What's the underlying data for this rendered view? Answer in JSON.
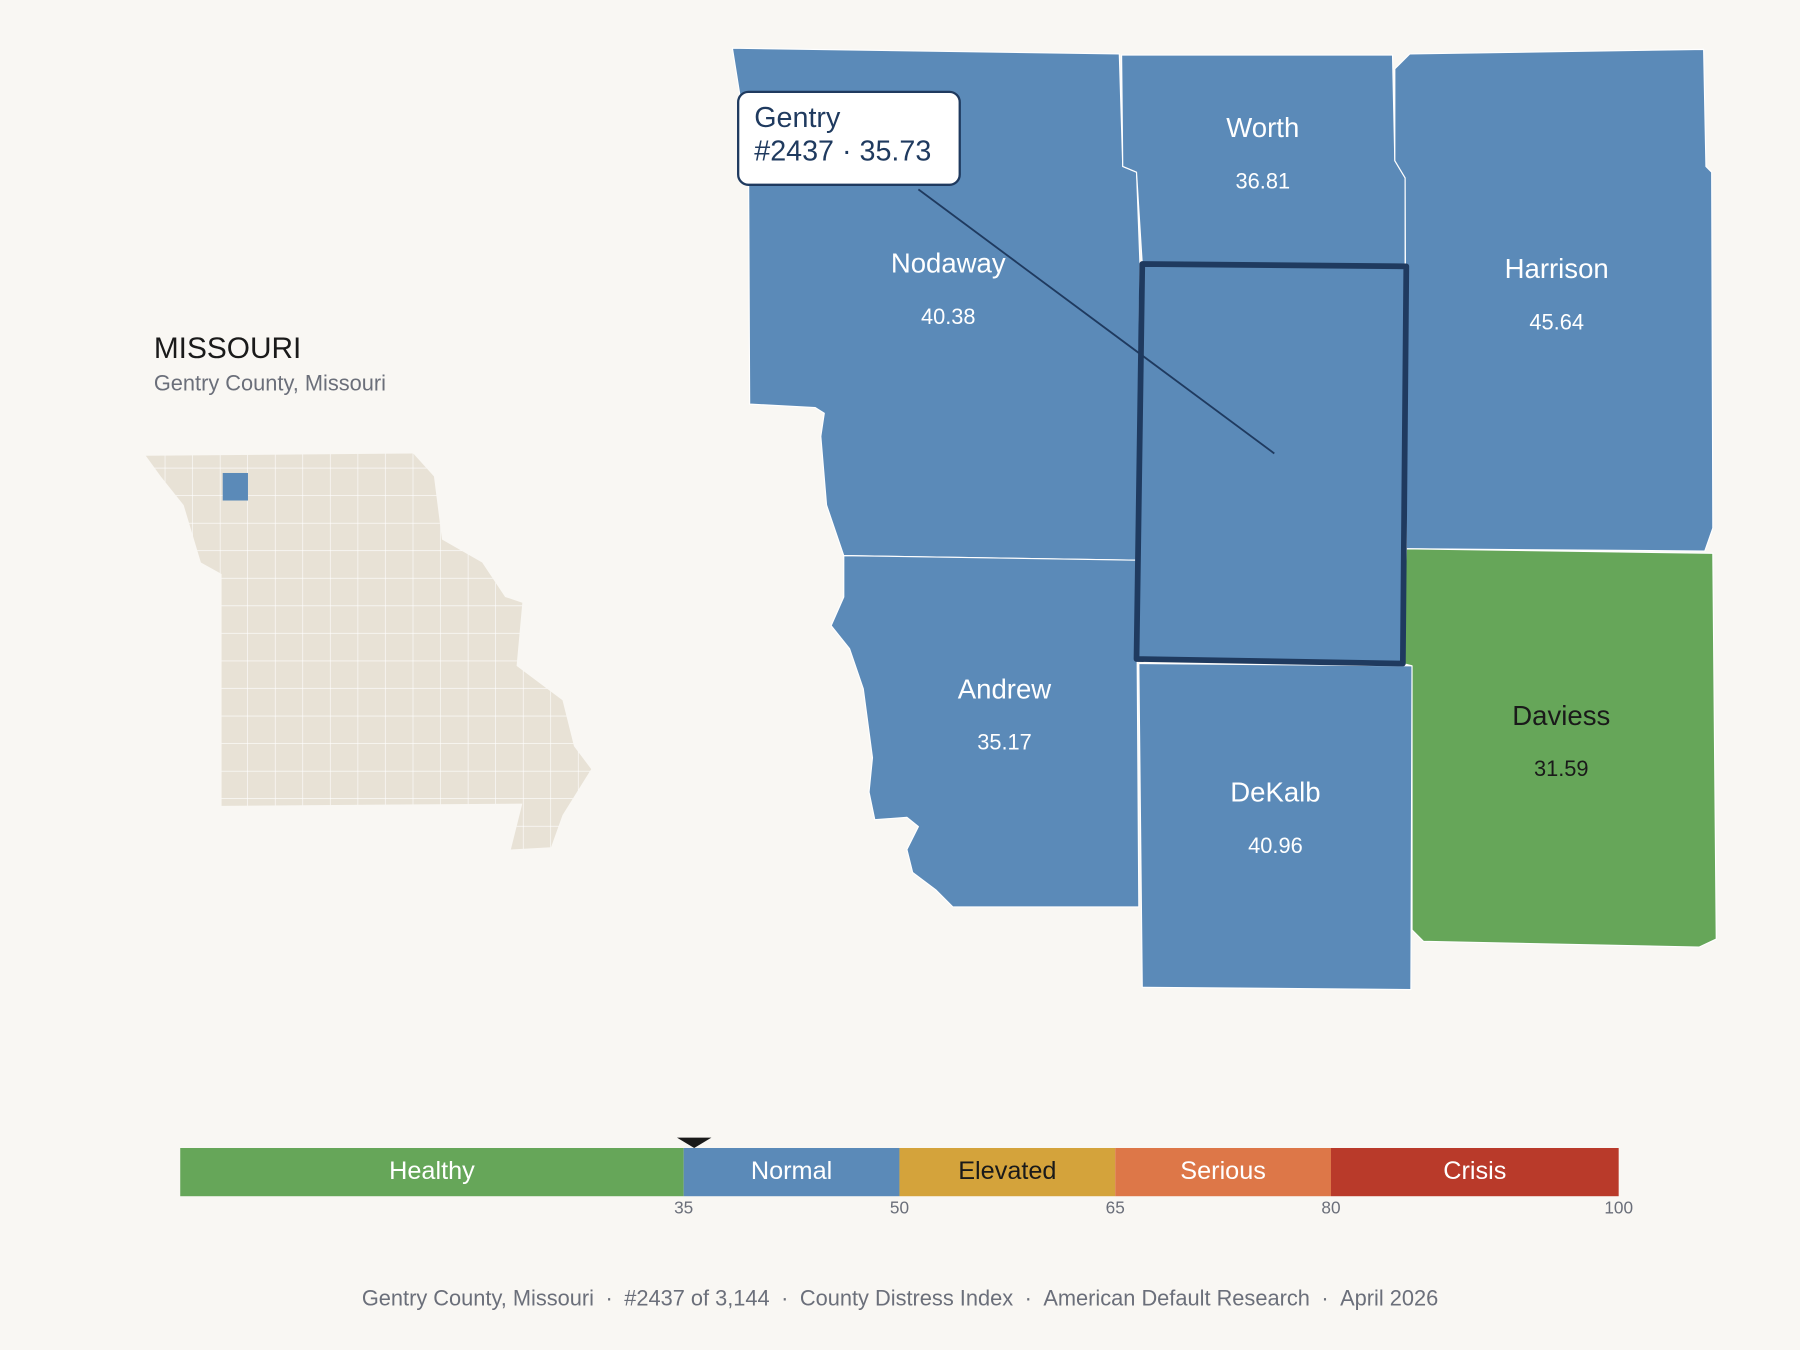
{
  "header": {
    "title": "MISSOURI",
    "subtitle": "Gentry County, Missouri"
  },
  "tooltip": {
    "name": "Gentry",
    "detail": "#2437 · 35.73"
  },
  "counties": [
    {
      "name": "Nodaway",
      "value": 40.38
    },
    {
      "name": "Worth",
      "value": 36.81
    },
    {
      "name": "Harrison",
      "value": 45.64
    },
    {
      "name": "Andrew",
      "value": 35.17
    },
    {
      "name": "DeKalb",
      "value": 40.96
    },
    {
      "name": "Daviess",
      "value": 31.59
    },
    {
      "name": "Gentry",
      "value": 35.73
    }
  ],
  "scale": {
    "range": [
      0,
      100
    ],
    "ticks": [
      35,
      50,
      65,
      80,
      100
    ],
    "bands": [
      {
        "label": "Healthy",
        "color": "#66a659"
      },
      {
        "label": "Normal",
        "color": "#5b8ab8"
      },
      {
        "label": "Elevated",
        "color": "#d4a33b"
      },
      {
        "label": "Serious",
        "color": "#dd7748"
      },
      {
        "label": "Crisis",
        "color": "#b93a2a"
      }
    ]
  },
  "footer": {
    "separator": "·",
    "items": [
      "Gentry County, Missouri",
      "#2437 of 3,144",
      "County Distress Index",
      "American Default Research",
      "April 2026"
    ]
  }
}
